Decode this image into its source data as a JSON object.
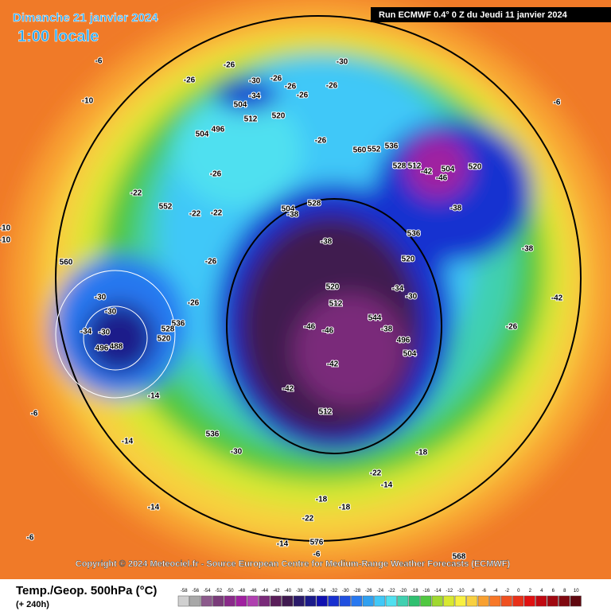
{
  "header": {
    "date": "Dimanche 21 janvier 2024",
    "time": "1:00 locale",
    "run": "Run ECMWF 0.4° 0 Z du Jeudi 11 janvier 2024"
  },
  "copyright": "Copyright © 2024 Meteociel.fr - Source European Centre for Medium-Range Weather Forecasts (ECMWF)",
  "legend": {
    "title": "Temp./Geop. 500hPa (°C)",
    "lead": "(+ 240h)",
    "scale": {
      "values": [
        -58,
        -56,
        -54,
        -52,
        -50,
        -48,
        -46,
        -44,
        -42,
        -40,
        -38,
        -36,
        -34,
        -32,
        -30,
        -28,
        -26,
        -24,
        -22,
        -20,
        -18,
        -16,
        -14,
        -12,
        -10,
        -8,
        -6,
        -4,
        -2,
        0,
        2,
        4,
        6,
        8,
        10
      ],
      "colors": [
        "#d0d0d0",
        "#a8a8a8",
        "#8c5a8c",
        "#7a3c7a",
        "#8a2a8a",
        "#a020a0",
        "#b040b0",
        "#7a2a7a",
        "#5a1e5a",
        "#401a50",
        "#2a1a6a",
        "#1a1a8a",
        "#1010b0",
        "#1830d0",
        "#2050e0",
        "#2878f0",
        "#30a0f0",
        "#40c8f8",
        "#50e0f0",
        "#40d0b0",
        "#30c070",
        "#50c840",
        "#a0d830",
        "#d8e830",
        "#f8f040",
        "#f8d040",
        "#f8a030",
        "#f87828",
        "#f05020",
        "#e83018",
        "#e01010",
        "#c00810",
        "#a00810",
        "#800810",
        "#600810"
      ]
    }
  },
  "map_labels": [
    -6,
    -10,
    -26,
    -26,
    -30,
    -26,
    -34,
    504,
    -26,
    -26,
    -26,
    512,
    520,
    504,
    496,
    -26,
    -30,
    560,
    552,
    536,
    528,
    512,
    -42,
    504,
    520,
    -46,
    -6,
    -26,
    -22,
    552,
    -22,
    -22,
    504,
    -38,
    528,
    -38,
    -38,
    536,
    -38,
    520,
    -34,
    -30,
    520,
    512,
    560,
    -30,
    -30,
    -34,
    -30,
    496,
    488,
    -14,
    -6,
    -14,
    536,
    -30,
    -14,
    -6,
    -22,
    -18,
    -18,
    -18,
    -22,
    -14,
    -14,
    576,
    -6,
    568,
    -26,
    -42,
    -46,
    -46,
    -42,
    512,
    -42,
    496,
    -38,
    504,
    544,
    -26,
    536,
    528,
    520,
    -26,
    -10,
    -10
  ]
}
